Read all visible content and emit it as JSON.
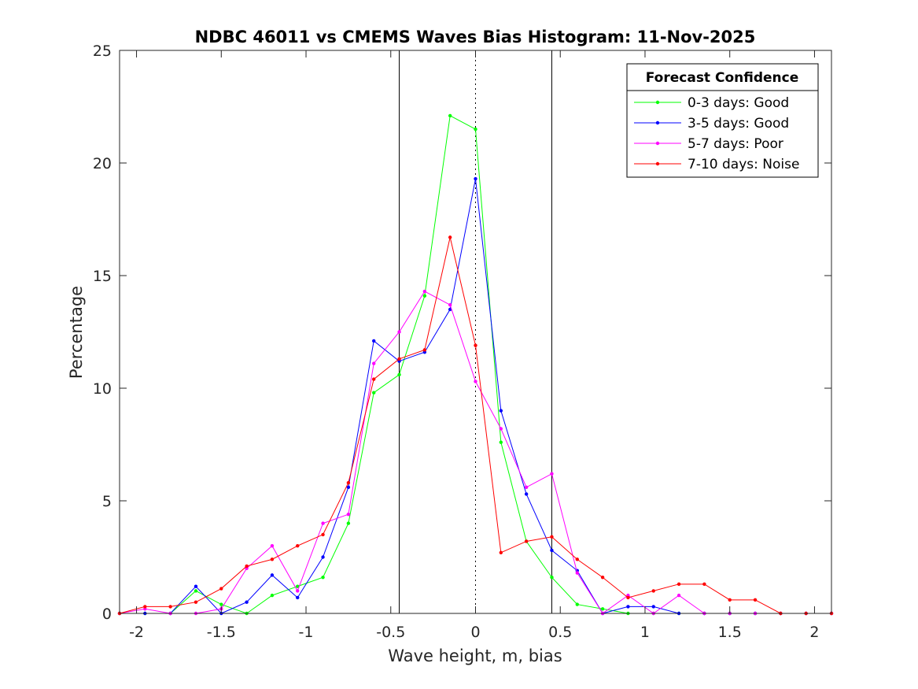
{
  "chart_data": {
    "type": "line",
    "title": "NDBC 46011 vs CMEMS Waves Bias Histogram: 11-Nov-2025",
    "xlabel": "Wave height, m, bias",
    "ylabel": "Percentage",
    "xlim": [
      -2.1,
      2.1
    ],
    "ylim": [
      0,
      25
    ],
    "xticks": [
      -2,
      -1.5,
      -1,
      -0.5,
      0,
      0.5,
      1,
      1.5,
      2
    ],
    "xtick_labels": [
      "-2",
      "-1.5",
      "-1",
      "-0.5",
      "0",
      "0.5",
      "1",
      "1.5",
      "2"
    ],
    "yticks": [
      0,
      5,
      10,
      15,
      20,
      25
    ],
    "ytick_labels": [
      "0",
      "5",
      "10",
      "15",
      "20",
      "25"
    ],
    "reference_lines": [
      {
        "x": -0.45,
        "style": "solid"
      },
      {
        "x": 0,
        "style": "dotted"
      },
      {
        "x": 0.45,
        "style": "solid"
      }
    ],
    "legend": {
      "title": "Forecast Confidence",
      "placement": "top-right"
    },
    "x": [
      -2.1,
      -1.95,
      -1.8,
      -1.65,
      -1.5,
      -1.35,
      -1.2,
      -1.05,
      -0.9,
      -0.75,
      -0.6,
      -0.45,
      -0.3,
      -0.15,
      0,
      0.15,
      0.3,
      0.45,
      0.6,
      0.75,
      0.9,
      1.05,
      1.2,
      1.35,
      1.5,
      1.65,
      1.8,
      1.95,
      2.1
    ],
    "series": [
      {
        "name": "0-3 days: Good",
        "color": "#00ff00",
        "values": [
          0,
          0,
          0,
          1.0,
          0.4,
          0,
          0.8,
          1.2,
          1.6,
          4.0,
          9.8,
          10.6,
          14.1,
          22.1,
          21.5,
          7.6,
          3.2,
          1.6,
          0.4,
          0.2,
          0,
          0,
          0,
          0,
          0,
          0,
          0,
          0,
          0
        ]
      },
      {
        "name": "3-5 days: Good",
        "color": "#0000ff",
        "values": [
          0,
          0,
          0,
          1.2,
          0,
          0.5,
          1.7,
          0.7,
          2.5,
          5.6,
          12.1,
          11.2,
          11.6,
          13.5,
          19.3,
          9.0,
          5.3,
          2.8,
          1.9,
          0,
          0.3,
          0.3,
          0,
          0,
          0,
          0,
          0,
          0,
          0
        ]
      },
      {
        "name": "5-7 days: Poor",
        "color": "#ff00ff",
        "values": [
          0,
          0.2,
          0,
          0,
          0.2,
          2.0,
          3.0,
          1.0,
          4.0,
          4.4,
          11.1,
          12.5,
          14.3,
          13.7,
          10.3,
          8.2,
          5.6,
          6.2,
          1.8,
          0,
          0.8,
          0,
          0.8,
          0,
          0,
          0,
          0,
          0,
          0
        ]
      },
      {
        "name": "7-10 days: Noise",
        "color": "#ff0000",
        "values": [
          0,
          0.3,
          0.3,
          0.5,
          1.1,
          2.1,
          2.4,
          3.0,
          3.5,
          5.8,
          10.4,
          11.3,
          11.7,
          16.7,
          11.9,
          2.7,
          3.2,
          3.4,
          2.4,
          1.6,
          0.7,
          1.0,
          1.3,
          1.3,
          0.6,
          0.6,
          0,
          0,
          0
        ]
      }
    ]
  }
}
